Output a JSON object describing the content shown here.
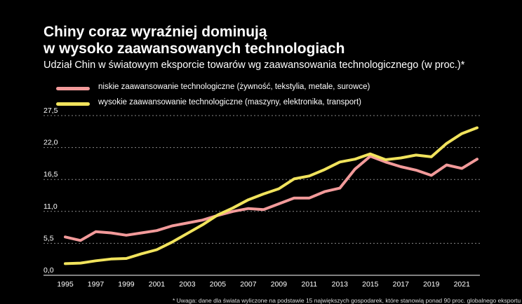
{
  "title": {
    "line1": "Chiny coraz wyraźniej dominują",
    "line2": "w wysoko zaawansowanych technologiach"
  },
  "subtitle": "Udział Chin w światowym eksporcie towarów wg zaawansowania technologicznego (w proc.)*",
  "footnote": "* Uwaga: dane dla świata wyliczone na podstawie 15 największych gospodarek, które stanowią ponad 90 proc. globalnego eksportu",
  "colors": {
    "low": "#f29a9a",
    "high": "#f1e35c",
    "grid": "#888888",
    "axis": "#ffffff"
  },
  "chart_data": {
    "type": "line",
    "title": "Udział Chin w światowym eksporcie towarów wg zaawansowania technologicznego (w proc.)*",
    "x": [
      1995,
      1996,
      1997,
      1998,
      1999,
      2000,
      2001,
      2002,
      2003,
      2004,
      2005,
      2006,
      2007,
      2008,
      2009,
      2010,
      2011,
      2012,
      2013,
      2014,
      2015,
      2016,
      2017,
      2018,
      2019,
      2020,
      2021,
      2022
    ],
    "x_ticks": [
      "1995",
      "1997",
      "1999",
      "2001",
      "2003",
      "2005",
      "2007",
      "2009",
      "2011",
      "2013",
      "2015",
      "2017",
      "2019",
      "2021"
    ],
    "y_ticks": [
      "0,0",
      "5,5",
      "11,0",
      "16,5",
      "22,0",
      "27,5"
    ],
    "ylim": [
      0,
      27.5
    ],
    "grid": true,
    "legend_position": "top-left",
    "series": [
      {
        "name": "niskie zaawansowanie technologiczne (żywność, tekstylia, metale, surowce)",
        "color_key": "low",
        "values": [
          6.6,
          6.0,
          7.5,
          7.3,
          6.9,
          7.3,
          7.7,
          8.5,
          9.0,
          9.5,
          10.3,
          11.0,
          11.5,
          11.3,
          12.3,
          13.3,
          13.3,
          14.4,
          15.0,
          18.3,
          20.5,
          19.5,
          18.7,
          18.1,
          17.2,
          19.0,
          18.4,
          20.0
        ]
      },
      {
        "name": "wysokie zaawansowanie technologiczne (maszyny, elektronika, transport)",
        "color_key": "high",
        "values": [
          2.0,
          2.1,
          2.5,
          2.8,
          2.9,
          3.7,
          4.4,
          5.7,
          7.2,
          8.7,
          10.4,
          11.6,
          13.0,
          14.0,
          14.9,
          16.6,
          17.1,
          18.2,
          19.5,
          20.0,
          20.9,
          19.9,
          20.2,
          20.7,
          20.4,
          22.7,
          24.4,
          25.4
        ]
      }
    ]
  }
}
